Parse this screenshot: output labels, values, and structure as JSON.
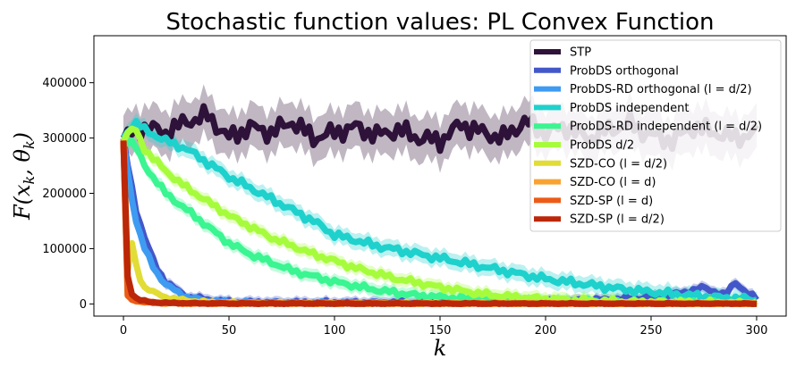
{
  "chart_data": {
    "type": "line",
    "title": "Stochastic function values: PL Convex Function",
    "xlabel": "k",
    "ylabel": "F(x_k, θ_k)",
    "ylabel_parts": [
      "F(x",
      "k",
      ", θ",
      "k",
      ")"
    ],
    "xlim": [
      -14,
      314
    ],
    "ylim": [
      -22000,
      485000
    ],
    "xticks": [
      0,
      50,
      100,
      150,
      200,
      250,
      300
    ],
    "yticks": [
      0,
      100000,
      200000,
      300000,
      400000
    ],
    "legend_position": "top-right",
    "grid": false,
    "series": [
      {
        "name": "STP",
        "color": "#2e1239",
        "width": 7,
        "x": [
          0,
          10,
          20,
          30,
          40,
          50,
          60,
          70,
          80,
          90,
          100,
          110,
          120,
          130,
          140,
          150,
          160,
          170,
          180,
          190,
          200,
          210,
          220,
          230,
          240,
          250,
          260,
          270,
          280,
          290,
          300
        ],
        "y": [
          300000,
          320000,
          310000,
          330000,
          340000,
          300000,
          320000,
          310000,
          330000,
          300000,
          310000,
          320000,
          305000,
          315000,
          300000,
          295000,
          325000,
          310000,
          300000,
          330000,
          310000,
          320000,
          300000,
          315000,
          325000,
          305000,
          295000,
          320000,
          310000,
          300000,
          310000
        ],
        "band": 40000
      },
      {
        "name": "ProbDS orthogonal",
        "color": "#4457c9",
        "width": 7,
        "x": [
          0,
          3,
          6,
          10,
          15,
          20,
          30,
          50,
          80,
          120,
          160,
          200,
          230,
          250,
          265,
          275,
          285,
          290,
          295,
          300
        ],
        "y": [
          295000,
          230000,
          170000,
          120000,
          70000,
          40000,
          12000,
          3000,
          2000,
          2000,
          3000,
          4000,
          8000,
          12000,
          20000,
          30000,
          15000,
          40000,
          20000,
          10000
        ],
        "band": 10000
      },
      {
        "name": "ProbDS-RD orthogonal (l = d/2)",
        "color": "#3e9bf2",
        "width": 7,
        "x": [
          0,
          3,
          6,
          10,
          15,
          20,
          30,
          40,
          60,
          100,
          200,
          300
        ],
        "y": [
          295000,
          210000,
          150000,
          100000,
          60000,
          35000,
          12000,
          5000,
          1500,
          800,
          500,
          500
        ],
        "band": 8000
      },
      {
        "name": "ProbDS independent",
        "color": "#1ed1cc",
        "width": 7,
        "x": [
          0,
          5,
          10,
          20,
          30,
          40,
          50,
          60,
          70,
          80,
          90,
          100,
          120,
          140,
          160,
          180,
          200,
          220,
          240,
          260,
          280,
          300
        ],
        "y": [
          300000,
          330000,
          315000,
          295000,
          280000,
          255000,
          230000,
          210000,
          190000,
          170000,
          150000,
          125000,
          105000,
          90000,
          75000,
          60000,
          45000,
          35000,
          25000,
          18000,
          12000,
          8000
        ],
        "band": 15000
      },
      {
        "name": "ProbDS-RD independent (l = d/2)",
        "color": "#3af591",
        "width": 7,
        "x": [
          0,
          5,
          10,
          20,
          30,
          40,
          50,
          60,
          80,
          100,
          120,
          140,
          160,
          180,
          200,
          240,
          300
        ],
        "y": [
          300000,
          290000,
          250000,
          200000,
          170000,
          140000,
          110000,
          90000,
          60000,
          40000,
          25000,
          15000,
          10000,
          6000,
          4000,
          2000,
          1000
        ],
        "band": 12000
      },
      {
        "name": "ProbDS d/2",
        "color": "#a6fc3c",
        "width": 7,
        "x": [
          0,
          5,
          10,
          20,
          30,
          40,
          50,
          60,
          70,
          80,
          90,
          100,
          110,
          120,
          130,
          140,
          150,
          160,
          170,
          180,
          200,
          220,
          240,
          260,
          280,
          300
        ],
        "y": [
          300000,
          320000,
          280000,
          240000,
          210000,
          185000,
          160000,
          140000,
          120000,
          105000,
          90000,
          78000,
          65000,
          55000,
          45000,
          38000,
          30000,
          24000,
          18000,
          14000,
          9000,
          6000,
          4000,
          3000,
          2000,
          1500
        ],
        "band": 12000
      },
      {
        "name": "SZD-CO (l = d/2)",
        "color": "#e2dc36",
        "width": 7,
        "x": [
          0,
          2,
          4,
          6,
          8,
          10,
          15,
          20,
          30,
          40,
          60,
          100,
          300
        ],
        "y": [
          295000,
          60000,
          110000,
          70000,
          45000,
          30000,
          20000,
          12000,
          6000,
          3000,
          1500,
          800,
          500
        ],
        "band": 6000
      },
      {
        "name": "SZD-CO (l = d)",
        "color": "#f9a234",
        "width": 7,
        "x": [
          0,
          1,
          3,
          5,
          10,
          20,
          40,
          300
        ],
        "y": [
          295000,
          20000,
          10000,
          6000,
          3000,
          1500,
          800,
          500
        ],
        "band": 3000
      },
      {
        "name": "SZD-SP (l = d)",
        "color": "#ec5b17",
        "width": 7,
        "x": [
          0,
          1,
          2,
          4,
          8,
          15,
          30,
          300
        ],
        "y": [
          295000,
          40000,
          15000,
          8000,
          4000,
          2000,
          800,
          300
        ],
        "band": 3000
      },
      {
        "name": "SZD-SP (l = d/2)",
        "color": "#bb2708",
        "width": 7,
        "x": [
          0,
          1,
          2,
          3,
          5,
          8,
          12,
          20,
          40,
          300
        ],
        "y": [
          295000,
          120000,
          50000,
          25000,
          12000,
          7000,
          4000,
          2000,
          800,
          300
        ],
        "band": 3000
      }
    ]
  }
}
